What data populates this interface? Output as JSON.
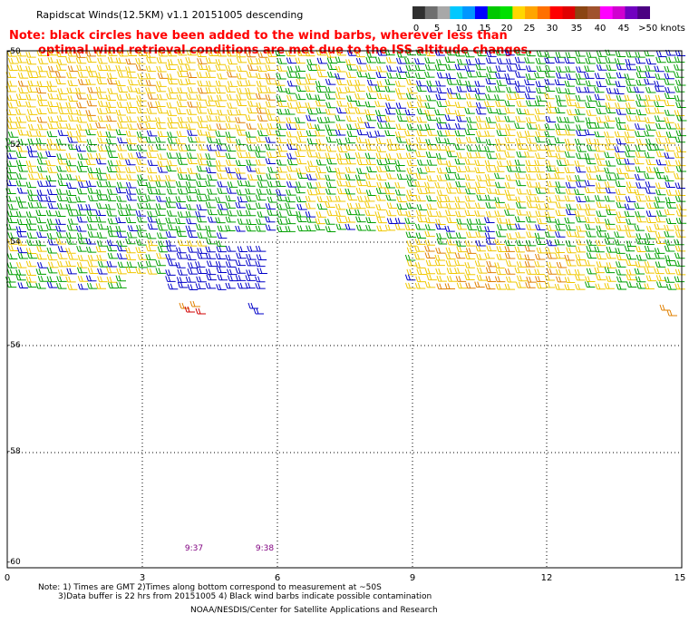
{
  "header": {
    "title": "Rapidscat Winds(12.5KM) v1.1 20151005 descending"
  },
  "note": {
    "line1": "Note: black circles have been added to the wind barbs, wherever less than",
    "line2": "optimal wind retrieval conditions are met due to the ISS altitude changes."
  },
  "colorbar": {
    "labels": [
      "0",
      "5",
      "10",
      "15",
      "20",
      "25",
      "30",
      "35",
      "40",
      "45",
      ">50 knots"
    ],
    "colors": [
      "#303030",
      "#6e6e6e",
      "#a8a8a8",
      "#00c8ff",
      "#0096ff",
      "#0000ff",
      "#00c800",
      "#00e000",
      "#ffd700",
      "#ffa500",
      "#ff7000",
      "#ff0000",
      "#e00000",
      "#8b4513",
      "#a0522d",
      "#ff00ff",
      "#d000d0",
      "#7000c0",
      "#4b0082"
    ]
  },
  "axes": {
    "lat_labels": [
      "-50",
      "-52",
      "-54",
      "-56",
      "-58",
      "-60"
    ],
    "lon_labels": [
      "0",
      "3",
      "6",
      "9",
      "12",
      "15"
    ]
  },
  "times": [
    "9:37",
    "9:38"
  ],
  "footer": {
    "line1": "Note: 1) Times are GMT 2)Times along bottom correspond to measurement at ~50S",
    "line2": "3)Data buffer is 22 hrs from 20151005 4) Black wind barbs indicate possible contamination",
    "line3": "NOAA/NESDIS/Center for Satellite Applications and Research"
  },
  "swath_colors": {
    "yellow": "#f0c800",
    "green": "#00a000",
    "blue": "#0000c8",
    "orange": "#e08000",
    "red": "#d00000"
  }
}
